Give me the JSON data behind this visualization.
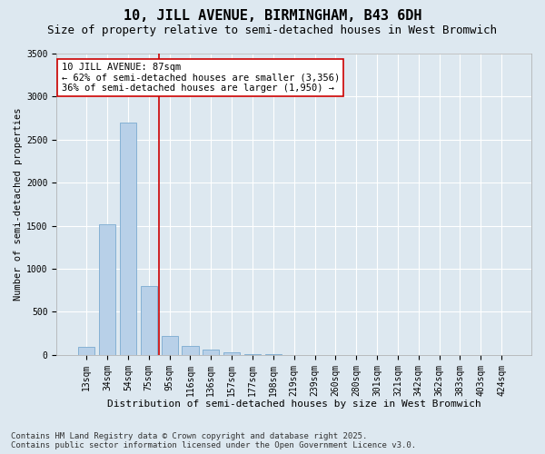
{
  "title": "10, JILL AVENUE, BIRMINGHAM, B43 6DH",
  "subtitle": "Size of property relative to semi-detached houses in West Bromwich",
  "xlabel": "Distribution of semi-detached houses by size in West Bromwich",
  "ylabel": "Number of semi-detached properties",
  "categories": [
    "13sqm",
    "34sqm",
    "54sqm",
    "75sqm",
    "95sqm",
    "116sqm",
    "136sqm",
    "157sqm",
    "177sqm",
    "198sqm",
    "219sqm",
    "239sqm",
    "260sqm",
    "280sqm",
    "301sqm",
    "321sqm",
    "342sqm",
    "362sqm",
    "383sqm",
    "403sqm",
    "424sqm"
  ],
  "values": [
    90,
    1520,
    2700,
    800,
    215,
    100,
    60,
    35,
    10,
    5,
    2,
    0,
    0,
    0,
    0,
    0,
    0,
    0,
    0,
    0,
    0
  ],
  "bar_color": "#b8d0e8",
  "bar_edge_color": "#7aaad0",
  "property_line_color": "#cc0000",
  "annotation_title": "10 JILL AVENUE: 87sqm",
  "annotation_line1": "← 62% of semi-detached houses are smaller (3,356)",
  "annotation_line2": "36% of semi-detached houses are larger (1,950) →",
  "annotation_box_facecolor": "#ffffff",
  "annotation_box_edgecolor": "#cc0000",
  "ylim": [
    0,
    3500
  ],
  "yticks": [
    0,
    500,
    1000,
    1500,
    2000,
    2500,
    3000,
    3500
  ],
  "background_color": "#dde8f0",
  "plot_bg_color": "#dde8f0",
  "grid_color": "#ffffff",
  "footer_line1": "Contains HM Land Registry data © Crown copyright and database right 2025.",
  "footer_line2": "Contains public sector information licensed under the Open Government Licence v3.0.",
  "title_fontsize": 11,
  "subtitle_fontsize": 9,
  "xlabel_fontsize": 8,
  "ylabel_fontsize": 7.5,
  "tick_fontsize": 7,
  "annotation_fontsize": 7.5,
  "footer_fontsize": 6.5
}
